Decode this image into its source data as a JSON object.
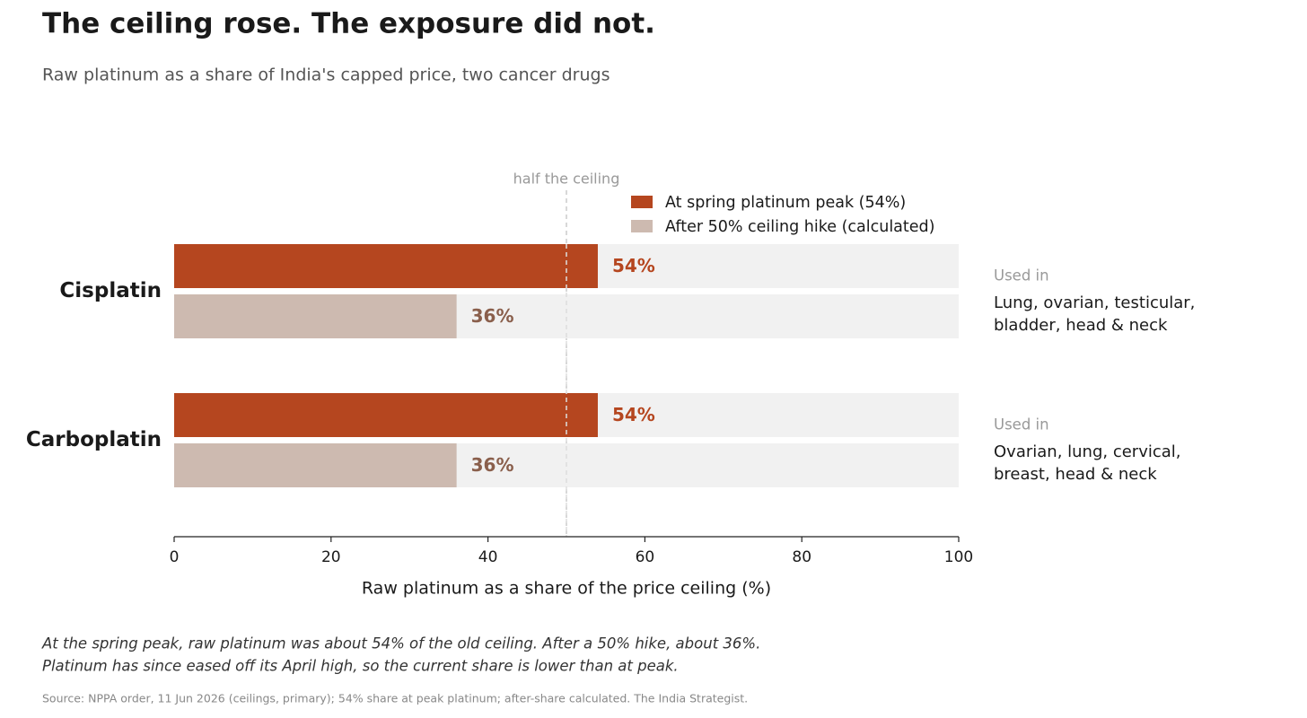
{
  "chart_data": {
    "type": "bar",
    "orientation": "horizontal",
    "title": "The ceiling rose. The exposure did not.",
    "subtitle": "Raw platinum as a share of India's capped price, two cancer drugs",
    "categories": [
      "Cisplatin",
      "Carboplatin"
    ],
    "series": [
      {
        "name": "At spring platinum peak (54%)",
        "color": "#b5461f",
        "values": [
          54,
          54
        ],
        "value_labels": [
          "54%",
          "54%"
        ]
      },
      {
        "name": "After 50% ceiling hike (calculated)",
        "color": "#cdbab0",
        "values": [
          36,
          36
        ],
        "value_labels": [
          "36%",
          "36%"
        ]
      }
    ],
    "xlabel": "Raw platinum as a share of the price ceiling (%)",
    "xlim": [
      0,
      100
    ],
    "xticks": [
      0,
      20,
      40,
      60,
      80,
      100
    ],
    "reference_line": {
      "value": 50,
      "label": "half the ceiling"
    },
    "side_notes": [
      {
        "heading": "Used in",
        "lines": [
          "Lung, ovarian, testicular,",
          "bladder, head & neck"
        ]
      },
      {
        "heading": "Used in",
        "lines": [
          "Ovarian, lung, cervical,",
          "breast, head & neck"
        ]
      }
    ],
    "footnote": [
      "At the spring peak, raw platinum was about 54% of the old ceiling. After a 50% hike, about 36%.",
      "Platinum has since eased off its April high, so the current share is lower than at peak."
    ],
    "source": "Source: NPPA order, 11 Jun 2026 (ceilings, primary); 54% share at peak platinum; after-share calculated.  The India Strategist."
  }
}
